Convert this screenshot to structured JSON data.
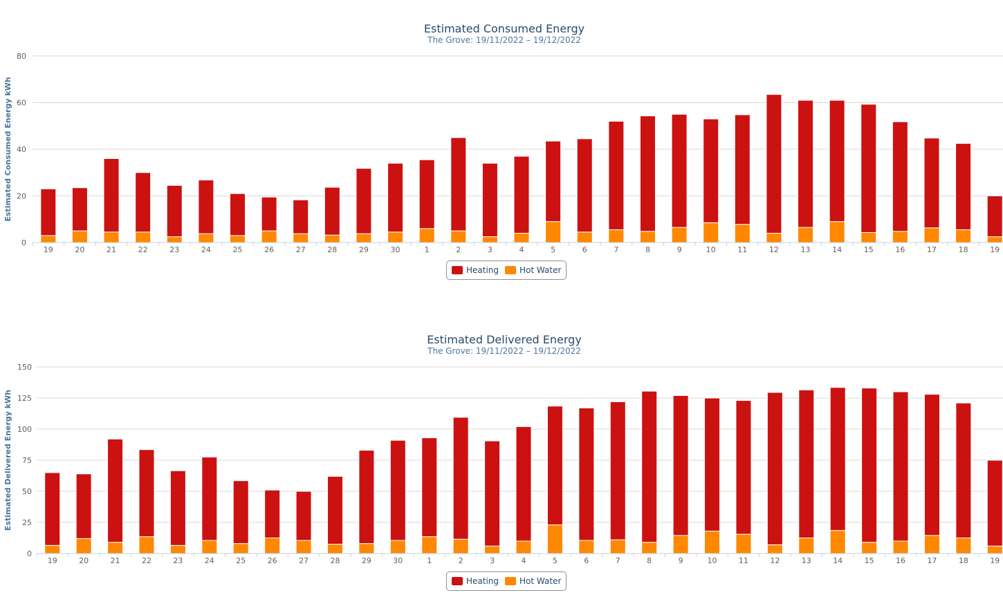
{
  "colors": {
    "heating": "#cc1111",
    "hot_water": "#ff8800",
    "grid": "#d8d8d8"
  },
  "chart_data": [
    {
      "type": "bar",
      "stacked": true,
      "title": "Estimated Consumed Energy",
      "subtitle": "The Grove: 19/11/2022 – 19/12/2022",
      "ylabel": "Estimated Consumed Energy kWh",
      "ylim": [
        0,
        80
      ],
      "yticks": [
        0,
        20,
        40,
        60,
        80
      ],
      "grid": true,
      "legend_position": "bottom-center",
      "categories": [
        "19",
        "20",
        "21",
        "22",
        "23",
        "24",
        "25",
        "26",
        "27",
        "28",
        "29",
        "30",
        "1",
        "2",
        "3",
        "4",
        "5",
        "6",
        "7",
        "8",
        "9",
        "10",
        "11",
        "12",
        "13",
        "14",
        "15",
        "16",
        "17",
        "18",
        "19"
      ],
      "series": [
        {
          "name": "Heating",
          "color": "#cc1111",
          "values": [
            20,
            18.5,
            31.5,
            25.5,
            22,
            23,
            18,
            14.5,
            14.5,
            20.5,
            28,
            29.5,
            29.5,
            40,
            31.5,
            33,
            34.5,
            40,
            46.5,
            49.5,
            48.5,
            44.5,
            47,
            59.5,
            54.5,
            52,
            55,
            47,
            38.5,
            37,
            17.5
          ]
        },
        {
          "name": "Hot Water",
          "color": "#ff8800",
          "values": [
            3,
            5,
            4.5,
            4.5,
            2.5,
            3.8,
            3,
            5,
            3.8,
            3.2,
            3.8,
            4.5,
            6,
            5,
            2.5,
            4,
            9,
            4.5,
            5.5,
            4.8,
            6.5,
            8.5,
            7.8,
            4,
            6.5,
            9,
            4.3,
            4.8,
            6.3,
            5.5,
            2.5
          ]
        }
      ]
    },
    {
      "type": "bar",
      "stacked": true,
      "title": "Estimated Delivered Energy",
      "subtitle": "The Grove: 19/11/2022 – 19/12/2022",
      "ylabel": "Estimated Delivered Energy kWh",
      "ylim": [
        0,
        150
      ],
      "yticks": [
        0,
        25,
        50,
        75,
        100,
        125,
        150
      ],
      "grid": true,
      "legend_position": "bottom-center",
      "categories": [
        "19",
        "20",
        "21",
        "22",
        "23",
        "24",
        "25",
        "26",
        "27",
        "28",
        "29",
        "30",
        "1",
        "2",
        "3",
        "4",
        "5",
        "6",
        "7",
        "8",
        "9",
        "10",
        "11",
        "12",
        "13",
        "14",
        "15",
        "16",
        "17",
        "18",
        "19"
      ],
      "series": [
        {
          "name": "Heating",
          "color": "#cc1111",
          "values": [
            58.5,
            52,
            83,
            70,
            60,
            67,
            50.5,
            38.5,
            39.5,
            54.5,
            75,
            80.5,
            79.5,
            98,
            84.5,
            92,
            95.5,
            106.5,
            111,
            121.5,
            112.5,
            107,
            107.5,
            122.5,
            119,
            115,
            124,
            120,
            113.5,
            108.5,
            69
          ]
        },
        {
          "name": "Hot Water",
          "color": "#ff8800",
          "values": [
            6.5,
            12,
            9,
            13.5,
            6.5,
            10.5,
            8,
            12.5,
            10.5,
            7.5,
            8,
            10.5,
            13.5,
            11.5,
            6,
            10,
            23,
            10.5,
            11,
            9,
            14.5,
            18,
            15.5,
            7,
            12.5,
            18.5,
            9,
            10,
            14.5,
            12.5,
            6
          ]
        }
      ]
    }
  ]
}
